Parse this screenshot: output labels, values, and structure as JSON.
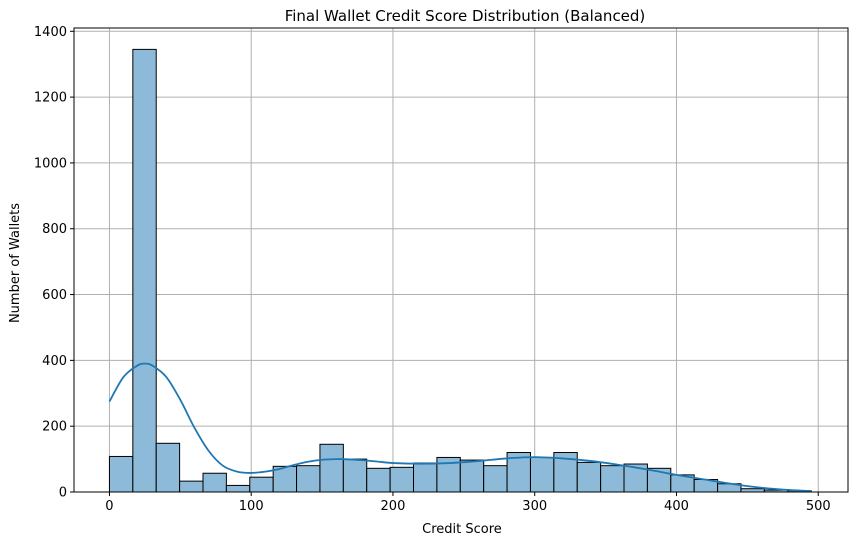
{
  "chart_data": {
    "type": "bar",
    "title": "Final Wallet Credit Score Distribution (Balanced)",
    "xlabel": "Credit Score",
    "ylabel": "Number of Wallets",
    "xlim": [
      -25,
      521
    ],
    "ylim": [
      0,
      1410
    ],
    "xticks": [
      0,
      100,
      200,
      300,
      400,
      500
    ],
    "yticks": [
      0,
      200,
      400,
      600,
      800,
      1000,
      1200,
      1400
    ],
    "grid": true,
    "bar_color": "#8ebad9",
    "edge_color": "#000000",
    "kde_color": "#1f77b4",
    "bins": [
      {
        "x0": 0.0,
        "x1": 16.5,
        "value": 108
      },
      {
        "x0": 16.5,
        "x1": 33.0,
        "value": 1345
      },
      {
        "x0": 33.0,
        "x1": 49.5,
        "value": 148
      },
      {
        "x0": 49.5,
        "x1": 66.0,
        "value": 33
      },
      {
        "x0": 66.0,
        "x1": 82.5,
        "value": 57
      },
      {
        "x0": 82.5,
        "x1": 99.0,
        "value": 20
      },
      {
        "x0": 99.0,
        "x1": 115.5,
        "value": 45
      },
      {
        "x0": 115.5,
        "x1": 132.0,
        "value": 78
      },
      {
        "x0": 132.0,
        "x1": 148.5,
        "value": 80
      },
      {
        "x0": 148.5,
        "x1": 165.0,
        "value": 145
      },
      {
        "x0": 165.0,
        "x1": 181.5,
        "value": 100
      },
      {
        "x0": 181.5,
        "x1": 198.0,
        "value": 72
      },
      {
        "x0": 198.0,
        "x1": 214.5,
        "value": 75
      },
      {
        "x0": 214.5,
        "x1": 231.0,
        "value": 88
      },
      {
        "x0": 231.0,
        "x1": 247.5,
        "value": 105
      },
      {
        "x0": 247.5,
        "x1": 264.0,
        "value": 97
      },
      {
        "x0": 264.0,
        "x1": 280.5,
        "value": 80
      },
      {
        "x0": 280.5,
        "x1": 297.0,
        "value": 120
      },
      {
        "x0": 297.0,
        "x1": 313.5,
        "value": 105
      },
      {
        "x0": 313.5,
        "x1": 330.0,
        "value": 120
      },
      {
        "x0": 330.0,
        "x1": 346.5,
        "value": 90
      },
      {
        "x0": 346.5,
        "x1": 363.0,
        "value": 80
      },
      {
        "x0": 363.0,
        "x1": 379.5,
        "value": 85
      },
      {
        "x0": 379.5,
        "x1": 396.0,
        "value": 72
      },
      {
        "x0": 396.0,
        "x1": 412.5,
        "value": 52
      },
      {
        "x0": 412.5,
        "x1": 429.0,
        "value": 38
      },
      {
        "x0": 429.0,
        "x1": 445.5,
        "value": 25
      },
      {
        "x0": 445.5,
        "x1": 462.0,
        "value": 10
      },
      {
        "x0": 462.0,
        "x1": 478.5,
        "value": 6
      },
      {
        "x0": 478.5,
        "x1": 495.0,
        "value": 4
      }
    ],
    "kde_line": {
      "x": [
        0,
        10,
        20,
        25,
        30,
        40,
        50,
        60,
        70,
        80,
        90,
        100,
        110,
        120,
        130,
        140,
        150,
        160,
        170,
        180,
        190,
        200,
        220,
        240,
        260,
        280,
        300,
        320,
        340,
        360,
        380,
        400,
        420,
        440,
        460,
        480,
        495
      ],
      "y": [
        275,
        350,
        385,
        390,
        385,
        350,
        280,
        195,
        125,
        80,
        62,
        58,
        62,
        70,
        82,
        92,
        98,
        100,
        99,
        96,
        92,
        88,
        86,
        88,
        94,
        102,
        106,
        102,
        94,
        82,
        68,
        52,
        38,
        24,
        13,
        6,
        3
      ]
    }
  }
}
